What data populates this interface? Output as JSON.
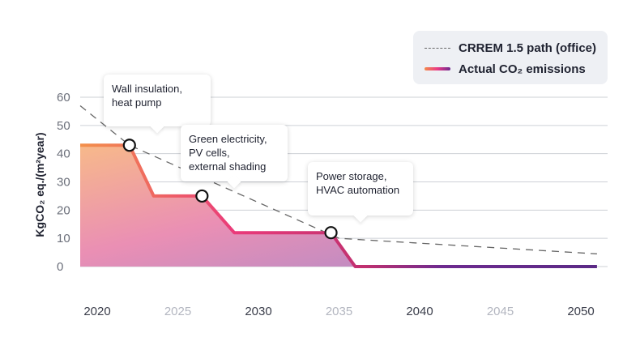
{
  "chart_data": {
    "type": "area",
    "ylabel": "KgCO₂ eq./(m²year)",
    "xlabel": "",
    "xlim": [
      2018,
      2051
    ],
    "ylim": [
      0,
      60
    ],
    "xticks": [
      2020,
      2025,
      2030,
      2035,
      2040,
      2045,
      2050
    ],
    "yticks": [
      0,
      10,
      20,
      30,
      40,
      50,
      60
    ],
    "grid": true,
    "legend_position": "top-right",
    "series": [
      {
        "name": "CRREM 1.5 path (office)",
        "style": "dashed",
        "color": "#666666",
        "x": [
          2018,
          2022,
          2035,
          2051
        ],
        "y": [
          57,
          43,
          10,
          4.5
        ]
      },
      {
        "name": "Actual CO₂ emissions",
        "style": "area",
        "gradient": [
          "#f38b4a",
          "#ea3a86",
          "#6d2a8f"
        ],
        "x": [
          2018,
          2022,
          2023.5,
          2026.5,
          2028.5,
          2034.5,
          2036,
          2051
        ],
        "y": [
          43,
          43,
          25,
          25,
          12,
          12,
          0,
          0
        ]
      }
    ],
    "markers": [
      {
        "x": 2022,
        "y": 43
      },
      {
        "x": 2026.5,
        "y": 25
      },
      {
        "x": 2034.5,
        "y": 12
      }
    ],
    "annotations": [
      {
        "lines": [
          "Wall insulation,",
          "heat pump"
        ]
      },
      {
        "lines": [
          "Green electricity,",
          "PV cells,",
          "external shading"
        ]
      },
      {
        "lines": [
          "Power storage,",
          "HVAC automation"
        ]
      }
    ],
    "colors": {
      "tick_dark": "#3a3d4a",
      "tick_light": "#b3b6c0",
      "grid": "#cdd0d6"
    }
  }
}
